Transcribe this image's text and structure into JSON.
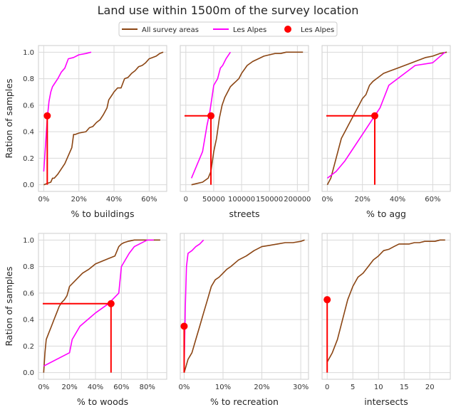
{
  "title": "Land use within 1500m of the survey location",
  "legend": {
    "entries": [
      {
        "label": "All survey areas",
        "kind": "line",
        "color": "#8B4513"
      },
      {
        "label": "Les Alpes",
        "kind": "line",
        "color": "#FF00FF"
      },
      {
        "label": "Les Alpes",
        "kind": "marker",
        "color": "#FF0000"
      }
    ]
  },
  "chart_data": [
    {
      "type": "line",
      "xlabel": "% to buildings",
      "ylabel": "Ration of samples",
      "xlim": [
        -3,
        70
      ],
      "ylim": [
        -0.05,
        1.05
      ],
      "xticks": [
        0,
        20,
        40,
        60
      ],
      "xtick_labels": [
        "0%",
        "20%",
        "40%",
        "60%"
      ],
      "yticks": [
        0,
        0.2,
        0.4,
        0.6,
        0.8,
        1.0
      ],
      "ytick_labels": [
        "0.0",
        "0.2",
        "0.4",
        "0.6",
        "0.8",
        "1.0"
      ],
      "series": [
        {
          "name": "All survey areas",
          "color": "#8B4513",
          "x": [
            0,
            2,
            4,
            5,
            6,
            8,
            10,
            12,
            14,
            16,
            17,
            18,
            20,
            24,
            26,
            28,
            30,
            32,
            34,
            36,
            37,
            38,
            39,
            40,
            42,
            44,
            46,
            48,
            50,
            52,
            54,
            56,
            58,
            60,
            62,
            64,
            66,
            68
          ],
          "y": [
            0,
            0.01,
            0.02,
            0.05,
            0.05,
            0.08,
            0.12,
            0.16,
            0.22,
            0.28,
            0.38,
            0.38,
            0.39,
            0.4,
            0.43,
            0.44,
            0.47,
            0.49,
            0.53,
            0.58,
            0.64,
            0.66,
            0.68,
            0.7,
            0.73,
            0.73,
            0.8,
            0.81,
            0.84,
            0.86,
            0.89,
            0.9,
            0.92,
            0.95,
            0.96,
            0.97,
            0.99,
            1.0
          ]
        },
        {
          "name": "Les Alpes",
          "color": "#FF00FF",
          "x": [
            0,
            1,
            2,
            3,
            4,
            5,
            6,
            8,
            10,
            12,
            14,
            17,
            20,
            24,
            27
          ],
          "y": [
            0.1,
            0.3,
            0.5,
            0.63,
            0.7,
            0.74,
            0.76,
            0.8,
            0.85,
            0.88,
            0.95,
            0.96,
            0.98,
            0.99,
            1.0
          ]
        }
      ],
      "marker": {
        "x": 2,
        "y": 0.52,
        "color": "#FF0000",
        "vline": true,
        "hline": false
      }
    },
    {
      "type": "line",
      "xlabel": "streets",
      "ylabel": "",
      "xlim": [
        -10000,
        220000
      ],
      "ylim": [
        -0.05,
        1.05
      ],
      "xticks": [
        0,
        50000,
        100000,
        150000,
        200000
      ],
      "xtick_labels": [
        "0",
        "50000",
        "100000",
        "150000",
        "200000"
      ],
      "yticks": [
        0,
        0.2,
        0.4,
        0.6,
        0.8,
        1.0
      ],
      "ytick_labels": [],
      "series": [
        {
          "name": "All survey areas",
          "color": "#8B4513",
          "x": [
            10000,
            20000,
            30000,
            40000,
            45000,
            50000,
            55000,
            60000,
            65000,
            70000,
            75000,
            80000,
            85000,
            90000,
            95000,
            100000,
            110000,
            120000,
            130000,
            140000,
            150000,
            160000,
            170000,
            180000,
            190000,
            200000,
            210000
          ],
          "y": [
            0,
            0.01,
            0.02,
            0.05,
            0.1,
            0.25,
            0.35,
            0.5,
            0.6,
            0.66,
            0.7,
            0.74,
            0.76,
            0.78,
            0.8,
            0.84,
            0.9,
            0.93,
            0.95,
            0.97,
            0.98,
            0.99,
            0.99,
            1.0,
            1.0,
            1.0,
            1.0
          ]
        },
        {
          "name": "Les Alpes",
          "color": "#FF00FF",
          "x": [
            10000,
            20000,
            30000,
            38000,
            43000,
            50000,
            57000,
            62000,
            66000,
            72000,
            80000
          ],
          "y": [
            0.05,
            0.15,
            0.25,
            0.45,
            0.55,
            0.75,
            0.8,
            0.88,
            0.9,
            0.95,
            1.0
          ]
        }
      ],
      "marker": {
        "x": 45000,
        "y": 0.52,
        "color": "#FF0000",
        "vline": true,
        "hline": true
      }
    },
    {
      "type": "line",
      "xlabel": "% to agg",
      "ylabel": "",
      "xlim": [
        -3,
        70
      ],
      "ylim": [
        -0.05,
        1.05
      ],
      "xticks": [
        0,
        20,
        40,
        60
      ],
      "xtick_labels": [
        "0%",
        "20%",
        "40%",
        "60%"
      ],
      "yticks": [
        0,
        0.2,
        0.4,
        0.6,
        0.8,
        1.0
      ],
      "ytick_labels": [],
      "series": [
        {
          "name": "All survey areas",
          "color": "#8B4513",
          "x": [
            0,
            2,
            4,
            6,
            8,
            10,
            12,
            14,
            16,
            18,
            20,
            22,
            24,
            26,
            28,
            30,
            32,
            34,
            36,
            40,
            44,
            48,
            52,
            56,
            60,
            64,
            68
          ],
          "y": [
            0,
            0.05,
            0.15,
            0.25,
            0.35,
            0.4,
            0.45,
            0.5,
            0.55,
            0.6,
            0.65,
            0.68,
            0.75,
            0.78,
            0.8,
            0.82,
            0.84,
            0.85,
            0.86,
            0.88,
            0.9,
            0.92,
            0.94,
            0.96,
            0.97,
            0.99,
            1.0
          ]
        },
        {
          "name": "Les Alpes",
          "color": "#FF00FF",
          "x": [
            0,
            5,
            10,
            15,
            20,
            25,
            30,
            35,
            40,
            50,
            60,
            67
          ],
          "y": [
            0.05,
            0.1,
            0.18,
            0.28,
            0.38,
            0.48,
            0.58,
            0.75,
            0.8,
            0.9,
            0.92,
            1.0
          ]
        }
      ],
      "marker": {
        "x": 27,
        "y": 0.52,
        "color": "#FF0000",
        "vline": true,
        "hline": true
      }
    },
    {
      "type": "line",
      "xlabel": "% to woods",
      "ylabel": "Ration of samples",
      "xlim": [
        -4,
        95
      ],
      "ylim": [
        -0.05,
        1.05
      ],
      "xticks": [
        0,
        20,
        40,
        60,
        80
      ],
      "xtick_labels": [
        "0%",
        "20%",
        "40%",
        "60%",
        "80%"
      ],
      "yticks": [
        0,
        0.2,
        0.4,
        0.6,
        0.8,
        1.0
      ],
      "ytick_labels": [
        "0.0",
        "0.2",
        "0.4",
        "0.6",
        "0.8",
        "1.0"
      ],
      "series": [
        {
          "name": "All survey areas",
          "color": "#8B4513",
          "x": [
            0,
            1,
            2,
            4,
            6,
            8,
            10,
            12,
            14,
            16,
            18,
            20,
            25,
            30,
            35,
            40,
            45,
            50,
            55,
            58,
            60,
            62,
            65,
            70,
            75,
            80,
            85,
            90
          ],
          "y": [
            0,
            0.15,
            0.25,
            0.3,
            0.35,
            0.4,
            0.45,
            0.5,
            0.53,
            0.55,
            0.58,
            0.65,
            0.7,
            0.75,
            0.78,
            0.82,
            0.84,
            0.86,
            0.88,
            0.95,
            0.97,
            0.98,
            0.99,
            1.0,
            1.0,
            1.0,
            1.0,
            1.0
          ]
        },
        {
          "name": "Les Alpes",
          "color": "#FF00FF",
          "x": [
            0,
            20,
            22,
            28,
            40,
            50,
            58,
            60,
            66,
            70,
            80,
            85
          ],
          "y": [
            0.05,
            0.15,
            0.25,
            0.35,
            0.45,
            0.52,
            0.6,
            0.8,
            0.9,
            0.95,
            1.0,
            1.0
          ]
        }
      ],
      "marker": {
        "x": 52,
        "y": 0.52,
        "color": "#FF0000",
        "vline": true,
        "hline": true
      }
    },
    {
      "type": "line",
      "xlabel": "% to recreation",
      "ylabel": "",
      "xlim": [
        -1,
        32
      ],
      "ylim": [
        -0.05,
        1.05
      ],
      "xticks": [
        0,
        10,
        20,
        30
      ],
      "xtick_labels": [
        "0%",
        "10%",
        "20%",
        "30%"
      ],
      "yticks": [
        0,
        0.2,
        0.4,
        0.6,
        0.8,
        1.0
      ],
      "ytick_labels": [],
      "series": [
        {
          "name": "All survey areas",
          "color": "#8B4513",
          "x": [
            0,
            1,
            2,
            3,
            4,
            5,
            6,
            7,
            8,
            9,
            10,
            11,
            12,
            14,
            16,
            18,
            20,
            22,
            24,
            26,
            28,
            30,
            31
          ],
          "y": [
            0,
            0.1,
            0.15,
            0.25,
            0.35,
            0.45,
            0.55,
            0.65,
            0.7,
            0.72,
            0.75,
            0.78,
            0.8,
            0.85,
            0.88,
            0.92,
            0.95,
            0.96,
            0.97,
            0.98,
            0.98,
            0.99,
            1.0
          ]
        },
        {
          "name": "Les Alpes",
          "color": "#FF00FF",
          "x": [
            0,
            0.3,
            0.6,
            1,
            2,
            3,
            4,
            5
          ],
          "y": [
            0.05,
            0.5,
            0.8,
            0.9,
            0.92,
            0.95,
            0.97,
            1.0
          ]
        }
      ],
      "marker": {
        "x": 0,
        "y": 0.35,
        "color": "#FF0000",
        "vline": true,
        "hline": false
      }
    },
    {
      "type": "line",
      "xlabel": "intersects",
      "ylabel": "",
      "xlim": [
        -1,
        24
      ],
      "ylim": [
        -0.05,
        1.05
      ],
      "xticks": [
        0,
        5,
        10,
        15,
        20
      ],
      "xtick_labels": [
        "0",
        "5",
        "10",
        "15",
        "20"
      ],
      "yticks": [
        0,
        0.2,
        0.4,
        0.6,
        0.8,
        1.0
      ],
      "ytick_labels": [],
      "series": [
        {
          "name": "All survey areas",
          "color": "#8B4513",
          "x": [
            0,
            1,
            2,
            3,
            4,
            5,
            6,
            7,
            8,
            9,
            10,
            11,
            12,
            13,
            14,
            15,
            16,
            17,
            18,
            19,
            20,
            21,
            22,
            23
          ],
          "y": [
            0.08,
            0.15,
            0.25,
            0.4,
            0.55,
            0.65,
            0.72,
            0.75,
            0.8,
            0.85,
            0.88,
            0.92,
            0.93,
            0.95,
            0.97,
            0.97,
            0.97,
            0.98,
            0.98,
            0.99,
            0.99,
            0.99,
            1.0,
            1.0
          ]
        }
      ],
      "marker": {
        "x": 0,
        "y": 0.55,
        "color": "#FF0000",
        "vline": true,
        "hline": false
      }
    }
  ]
}
